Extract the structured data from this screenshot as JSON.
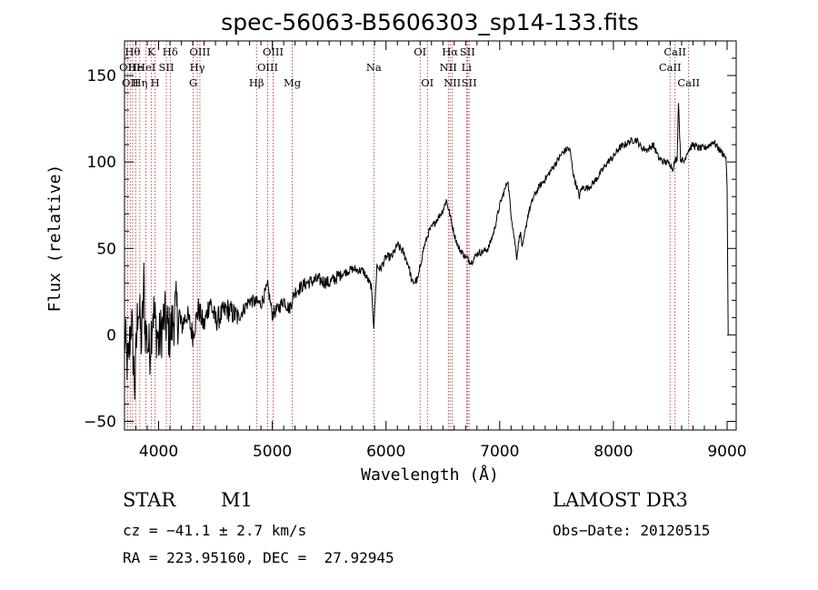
{
  "chart_data": {
    "type": "line",
    "title": "spec-56063-B5606303_sp14-133.fits",
    "xlabel": "Wavelength (Å)",
    "ylabel": "Flux (relative)",
    "xlim": [
      3700,
      9080
    ],
    "ylim": [
      -55,
      170
    ],
    "x_ticks": [
      4000,
      5000,
      6000,
      7000,
      8000,
      9000
    ],
    "y_ticks": [
      -50,
      0,
      50,
      100,
      150
    ],
    "x_tick_labels": [
      "4000",
      "5000",
      "6000",
      "7000",
      "8000",
      "9000"
    ],
    "y_tick_labels": [
      "−50",
      "0",
      "50",
      "100",
      "150"
    ],
    "grid": false,
    "line_color": "#000000",
    "marker_color": "#b22222",
    "series": [
      {
        "name": "flux",
        "anchors": [
          [
            3700,
            0
          ],
          [
            3730,
            -20
          ],
          [
            3760,
            10
          ],
          [
            3790,
            -30
          ],
          [
            3820,
            20
          ],
          [
            3850,
            -5
          ],
          [
            3870,
            30
          ],
          [
            3880,
            5
          ],
          [
            3920,
            -10
          ],
          [
            3950,
            15
          ],
          [
            4000,
            -5
          ],
          [
            4050,
            10
          ],
          [
            4100,
            0
          ],
          [
            4150,
            15
          ],
          [
            4200,
            5
          ],
          [
            4250,
            12
          ],
          [
            4300,
            0
          ],
          [
            4350,
            15
          ],
          [
            4400,
            5
          ],
          [
            4450,
            20
          ],
          [
            4500,
            8
          ],
          [
            4600,
            15
          ],
          [
            4700,
            10
          ],
          [
            4800,
            20
          ],
          [
            4900,
            18
          ],
          [
            4960,
            28
          ],
          [
            5000,
            12
          ],
          [
            5050,
            15
          ],
          [
            5100,
            20
          ],
          [
            5150,
            15
          ],
          [
            5200,
            25
          ],
          [
            5300,
            30
          ],
          [
            5400,
            32
          ],
          [
            5500,
            30
          ],
          [
            5600,
            35
          ],
          [
            5700,
            38
          ],
          [
            5800,
            37
          ],
          [
            5870,
            28
          ],
          [
            5893,
            5
          ],
          [
            5920,
            40
          ],
          [
            5950,
            38
          ],
          [
            6000,
            45
          ],
          [
            6050,
            45
          ],
          [
            6100,
            52
          ],
          [
            6150,
            48
          ],
          [
            6200,
            40
          ],
          [
            6230,
            30
          ],
          [
            6280,
            32
          ],
          [
            6330,
            50
          ],
          [
            6380,
            60
          ],
          [
            6420,
            64
          ],
          [
            6460,
            68
          ],
          [
            6500,
            72
          ],
          [
            6530,
            78
          ],
          [
            6560,
            70
          ],
          [
            6600,
            58
          ],
          [
            6640,
            50
          ],
          [
            6700,
            45
          ],
          [
            6750,
            42
          ],
          [
            6800,
            47
          ],
          [
            6850,
            48
          ],
          [
            6900,
            50
          ],
          [
            6950,
            60
          ],
          [
            7000,
            75
          ],
          [
            7050,
            85
          ],
          [
            7070,
            90
          ],
          [
            7100,
            70
          ],
          [
            7130,
            55
          ],
          [
            7150,
            45
          ],
          [
            7180,
            60
          ],
          [
            7200,
            50
          ],
          [
            7250,
            70
          ],
          [
            7300,
            80
          ],
          [
            7350,
            86
          ],
          [
            7400,
            90
          ],
          [
            7450,
            95
          ],
          [
            7500,
            100
          ],
          [
            7550,
            105
          ],
          [
            7600,
            108
          ],
          [
            7620,
            106
          ],
          [
            7650,
            92
          ],
          [
            7680,
            85
          ],
          [
            7700,
            80
          ],
          [
            7720,
            85
          ],
          [
            7780,
            85
          ],
          [
            7850,
            90
          ],
          [
            7900,
            95
          ],
          [
            7950,
            100
          ],
          [
            8000,
            103
          ],
          [
            8050,
            108
          ],
          [
            8100,
            110
          ],
          [
            8150,
            112
          ],
          [
            8200,
            113
          ],
          [
            8250,
            108
          ],
          [
            8300,
            107
          ],
          [
            8350,
            110
          ],
          [
            8400,
            102
          ],
          [
            8450,
            100
          ],
          [
            8500,
            99
          ],
          [
            8520,
            96
          ],
          [
            8545,
            101
          ],
          [
            8560,
            102
          ],
          [
            8572,
            136
          ],
          [
            8590,
            102
          ],
          [
            8620,
            100
          ],
          [
            8650,
            106
          ],
          [
            8700,
            110
          ],
          [
            8750,
            108
          ],
          [
            8800,
            108
          ],
          [
            8850,
            110
          ],
          [
            8880,
            112
          ],
          [
            8920,
            108
          ],
          [
            8960,
            105
          ],
          [
            8990,
            103
          ],
          [
            9000,
            85
          ],
          [
            9005,
            40
          ],
          [
            9010,
            0
          ]
        ]
      }
    ],
    "markers": [
      {
        "wl": 3727,
        "label": "OII",
        "row": 2
      },
      {
        "wl": 3750,
        "label": "OII",
        "row": 3
      },
      {
        "wl": 3771,
        "label": "Hθ",
        "row": 1
      },
      {
        "wl": 3798,
        "label": "He",
        "row": 2
      },
      {
        "wl": 3835,
        "label": "Hη",
        "row": 3
      },
      {
        "wl": 3889,
        "label": "HeI",
        "row": 2
      },
      {
        "wl": 3934,
        "label": "K",
        "row": 1
      },
      {
        "wl": 3969,
        "label": "H",
        "row": 3
      },
      {
        "wl": 4068,
        "label": "SII",
        "row": 2
      },
      {
        "wl": 4102,
        "label": "Hδ",
        "row": 1
      },
      {
        "wl": 4304,
        "label": "G",
        "row": 3
      },
      {
        "wl": 4340,
        "label": "Hγ",
        "row": 2
      },
      {
        "wl": 4363,
        "label": "OIII",
        "row": 1
      },
      {
        "wl": 4861,
        "label": "Hβ",
        "row": 3
      },
      {
        "wl": 4959,
        "label": "OIII",
        "row": 2
      },
      {
        "wl": 5007,
        "label": "OIII",
        "row": 1
      },
      {
        "wl": 5175,
        "label": "Mg",
        "row": 3
      },
      {
        "wl": 5893,
        "label": "Na",
        "row": 2
      },
      {
        "wl": 6300,
        "label": "OI",
        "row": 1
      },
      {
        "wl": 6364,
        "label": "OI",
        "row": 3
      },
      {
        "wl": 6548,
        "label": "NII",
        "row": 2
      },
      {
        "wl": 6563,
        "label": "Hα",
        "row": 1
      },
      {
        "wl": 6583,
        "label": "NII",
        "row": 3
      },
      {
        "wl": 6708,
        "label": "Li",
        "row": 2
      },
      {
        "wl": 6716,
        "label": "SII",
        "row": 1
      },
      {
        "wl": 6731,
        "label": "SII",
        "row": 3
      },
      {
        "wl": 8498,
        "label": "CaII",
        "row": 2
      },
      {
        "wl": 8542,
        "label": "CaII",
        "row": 1
      },
      {
        "wl": 8662,
        "label": "CaII",
        "row": 3
      }
    ]
  },
  "info": {
    "object_class": "STAR",
    "subclass": "M1",
    "survey": "LAMOST DR3",
    "redshift": "cz = −41.1 ± 2.7 km/s",
    "obs_date": "Obs−Date: 20120515",
    "coords": "RA = 223.95160, DEC =  27.92945"
  }
}
